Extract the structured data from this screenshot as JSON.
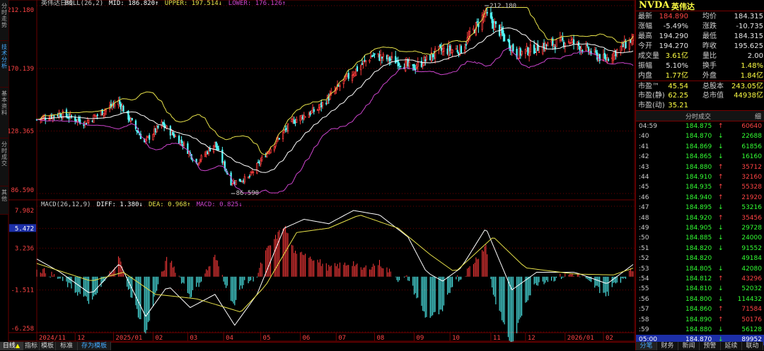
{
  "left_tabs": [
    "分时走势",
    "技术分析",
    "基本资料",
    "分时成交",
    "其他"
  ],
  "colors": {
    "up": "#ff3b3b",
    "down": "#54ffff",
    "mid": "#ffffff",
    "upper": "#e8e24a",
    "lower": "#cc44cc",
    "grid": "#6b0000",
    "price": "#ff4444",
    "green": "#33ff33"
  },
  "chart_data": [
    {
      "type": "candlestick",
      "legend": {
        "name": "英伟达日线",
        "indicator": "BOLL(26,2)",
        "mid": "MID: 186.820↑",
        "upper": "UPPER: 197.514↓",
        "lower": "LOWER: 176.126↑"
      },
      "y_ticks": [
        "212.180",
        "170.139",
        "128.365",
        "86.590"
      ],
      "ylim": [
        86.59,
        212.18
      ],
      "annotations": [
        {
          "label": "212.180",
          "x": "2025-10-29",
          "y": 212.18
        },
        {
          "label": "86.590",
          "x": "2025-04-07",
          "y": 86.59
        }
      ],
      "close_anchors": [
        {
          "x": "2024-11-01",
          "y": 136
        },
        {
          "x": "2024-11-20",
          "y": 140
        },
        {
          "x": "2024-12-10",
          "y": 134
        },
        {
          "x": "2025-01-06",
          "y": 148
        },
        {
          "x": "2025-01-27",
          "y": 121
        },
        {
          "x": "2025-02-10",
          "y": 133
        },
        {
          "x": "2025-02-27",
          "y": 120
        },
        {
          "x": "2025-03-10",
          "y": 107
        },
        {
          "x": "2025-03-25",
          "y": 120
        },
        {
          "x": "2025-04-07",
          "y": 94
        },
        {
          "x": "2025-04-21",
          "y": 97
        },
        {
          "x": "2025-05-05",
          "y": 113
        },
        {
          "x": "2025-05-27",
          "y": 135
        },
        {
          "x": "2025-06-16",
          "y": 143
        },
        {
          "x": "2025-07-10",
          "y": 164
        },
        {
          "x": "2025-07-30",
          "y": 179
        },
        {
          "x": "2025-08-20",
          "y": 175
        },
        {
          "x": "2025-09-01",
          "y": 170
        },
        {
          "x": "2025-09-22",
          "y": 182
        },
        {
          "x": "2025-10-10",
          "y": 183
        },
        {
          "x": "2025-10-29",
          "y": 207
        },
        {
          "x": "2025-11-10",
          "y": 195
        },
        {
          "x": "2025-11-24",
          "y": 180
        },
        {
          "x": "2025-12-10",
          "y": 184
        },
        {
          "x": "2026-01-05",
          "y": 189
        },
        {
          "x": "2026-02-03",
          "y": 176
        },
        {
          "x": "2026-02-26",
          "y": 190
        }
      ]
    },
    {
      "type": "line",
      "legend": {
        "name": "MACD(26,12,9)",
        "diff": "DIFF: 1.380↓",
        "dea": "DEA: 0.968↑",
        "macd": "MACD: 0.825↓"
      },
      "y_ticks": [
        "7.982",
        "5.472",
        "3.236",
        "-1.511",
        "-6.258"
      ],
      "ylim": [
        -6.258,
        7.982
      ],
      "series": [
        {
          "name": "DIFF",
          "points": [
            {
              "x": "2024-11-01",
              "y": 2.0
            },
            {
              "x": "2024-11-20",
              "y": 0.5
            },
            {
              "x": "2024-12-15",
              "y": -2.0
            },
            {
              "x": "2025-01-07",
              "y": 1.5
            },
            {
              "x": "2025-01-28",
              "y": -4.5
            },
            {
              "x": "2025-02-15",
              "y": -1.0
            },
            {
              "x": "2025-03-05",
              "y": -3.5
            },
            {
              "x": "2025-03-25",
              "y": -2.0
            },
            {
              "x": "2025-04-10",
              "y": -5.5
            },
            {
              "x": "2025-04-28",
              "y": -2.0
            },
            {
              "x": "2025-05-20",
              "y": 5.5
            },
            {
              "x": "2025-06-05",
              "y": 6.5
            },
            {
              "x": "2025-06-25",
              "y": 6.0
            },
            {
              "x": "2025-07-15",
              "y": 7.5
            },
            {
              "x": "2025-08-05",
              "y": 7.0
            },
            {
              "x": "2025-08-28",
              "y": 4.5
            },
            {
              "x": "2025-09-12",
              "y": 0.5
            },
            {
              "x": "2025-09-25",
              "y": -0.5
            },
            {
              "x": "2025-10-10",
              "y": 1.0
            },
            {
              "x": "2025-10-30",
              "y": 5.5
            },
            {
              "x": "2025-11-20",
              "y": -1.5
            },
            {
              "x": "2025-12-10",
              "y": 0.5
            },
            {
              "x": "2026-01-10",
              "y": 0.5
            },
            {
              "x": "2026-02-05",
              "y": -0.8
            },
            {
              "x": "2026-02-26",
              "y": 1.38
            }
          ]
        },
        {
          "name": "DEA",
          "points": [
            {
              "x": "2024-11-01",
              "y": 1.5
            },
            {
              "x": "2024-12-15",
              "y": -0.5
            },
            {
              "x": "2025-01-10",
              "y": 0.5
            },
            {
              "x": "2025-02-05",
              "y": -2.0
            },
            {
              "x": "2025-03-10",
              "y": -2.5
            },
            {
              "x": "2025-04-15",
              "y": -4.0
            },
            {
              "x": "2025-05-05",
              "y": -1.0
            },
            {
              "x": "2025-05-30",
              "y": 5.0
            },
            {
              "x": "2025-06-25",
              "y": 5.5
            },
            {
              "x": "2025-07-20",
              "y": 7.0
            },
            {
              "x": "2025-08-20",
              "y": 5.5
            },
            {
              "x": "2025-09-15",
              "y": 2.5
            },
            {
              "x": "2025-10-05",
              "y": 0.5
            },
            {
              "x": "2025-11-05",
              "y": 4.5
            },
            {
              "x": "2025-12-01",
              "y": 1.0
            },
            {
              "x": "2026-01-10",
              "y": 0.3
            },
            {
              "x": "2026-02-10",
              "y": 0.2
            },
            {
              "x": "2026-02-26",
              "y": 0.968
            }
          ]
        }
      ]
    }
  ],
  "x_labels": [
    "2024/11",
    "12",
    "2025/01",
    "02",
    "03",
    "04",
    "05",
    "06",
    "07",
    "08",
    "09",
    "10",
    "11",
    "12",
    "2026/01",
    "02"
  ],
  "bottom_tabs": [
    "日线",
    "指标",
    "模板",
    "标准",
    "存为模板"
  ],
  "quote": {
    "symbol": "NVDA",
    "name": "英伟达",
    "rows": [
      {
        "l1": "最新",
        "v1": "184.890",
        "l2": "均价",
        "v2": "184.315",
        "c1": "red",
        "c2": "white"
      },
      {
        "l1": "涨幅",
        "v1": "-5.49%",
        "l2": "涨跌",
        "v2": "-10.735",
        "c1": "white",
        "c2": "white"
      },
      {
        "l1": "最高",
        "v1": "194.290",
        "l2": "最低",
        "v2": "184.315",
        "c1": "white",
        "c2": "white"
      },
      {
        "l1": "今开",
        "v1": "194.270",
        "l2": "昨收",
        "v2": "195.625",
        "c1": "white",
        "c2": "white"
      },
      {
        "l1": "成交量",
        "v1": "3.61亿",
        "l2": "量比",
        "v2": "2.00",
        "c1": "yellow",
        "c2": "white"
      },
      {
        "l1": "振幅",
        "v1": "5.10%",
        "l2": "换手",
        "v2": "1.48%",
        "c1": "white",
        "c2": "yellow"
      },
      {
        "l1": "内盘",
        "v1": "1.77亿",
        "l2": "外盘",
        "v2": "1.84亿",
        "c1": "yellow",
        "c2": "yellow"
      },
      {
        "l1": "市盈™",
        "v1": "45.54",
        "l2": "总股本",
        "v2": "243.05亿",
        "c1": "yellow",
        "c2": "yellow"
      },
      {
        "l1": "市盈(静)",
        "v1": "62.25",
        "l2": "总市值",
        "v2": "44938亿",
        "c1": "yellow",
        "c2": "yellow"
      },
      {
        "l1": "市盈(动)",
        "v1": "35.21",
        "l2": "",
        "v2": "",
        "c1": "yellow",
        "c2": "white"
      }
    ],
    "ticks_title": "分时成交",
    "ticks_corner": "细",
    "ticks": [
      {
        "t": "04:59",
        "p": "184.875",
        "a": "↑",
        "v": "60640"
      },
      {
        "t": ":40",
        "p": "184.870",
        "a": "↓",
        "v": "22688"
      },
      {
        "t": ":41",
        "p": "184.869",
        "a": "↓",
        "v": "61856"
      },
      {
        "t": ":42",
        "p": "184.865",
        "a": "↓",
        "v": "16160"
      },
      {
        "t": ":43",
        "p": "184.880",
        "a": "↑",
        "v": "35712"
      },
      {
        "t": ":44",
        "p": "184.910",
        "a": "↑",
        "v": "32160"
      },
      {
        "t": ":45",
        "p": "184.935",
        "a": "↑",
        "v": "55328"
      },
      {
        "t": ":46",
        "p": "184.940",
        "a": "↑",
        "v": "21920"
      },
      {
        "t": ":47",
        "p": "184.895",
        "a": "↓",
        "v": "53216"
      },
      {
        "t": ":48",
        "p": "184.920",
        "a": "↑",
        "v": "35456"
      },
      {
        "t": ":49",
        "p": "184.905",
        "a": "↓",
        "v": "29728"
      },
      {
        "t": ":50",
        "p": "184.885",
        "a": "↓",
        "v": "24000"
      },
      {
        "t": ":51",
        "p": "184.820",
        "a": "↓",
        "v": "91552"
      },
      {
        "t": ":52",
        "p": "184.820",
        "a": "",
        "v": "49184"
      },
      {
        "t": ":53",
        "p": "184.805",
        "a": "↓",
        "v": "42080"
      },
      {
        "t": ":54",
        "p": "184.812",
        "a": "↑",
        "v": "43296"
      },
      {
        "t": ":55",
        "p": "184.810",
        "a": "↓",
        "v": "52032"
      },
      {
        "t": ":56",
        "p": "184.800",
        "a": "↓",
        "v": "114432"
      },
      {
        "t": ":57",
        "p": "184.860",
        "a": "↑",
        "v": "71584"
      },
      {
        "t": ":58",
        "p": "184.890",
        "a": "↑",
        "v": "50176"
      },
      {
        "t": ":59",
        "p": "184.880",
        "a": "↓",
        "v": "56128"
      },
      {
        "t": "05:00",
        "p": "184.870",
        "a": "↓",
        "v": "89952"
      }
    ],
    "right_tabs": [
      "分笔",
      "财务",
      "新闻",
      "预警",
      "延续",
      "联动"
    ]
  }
}
